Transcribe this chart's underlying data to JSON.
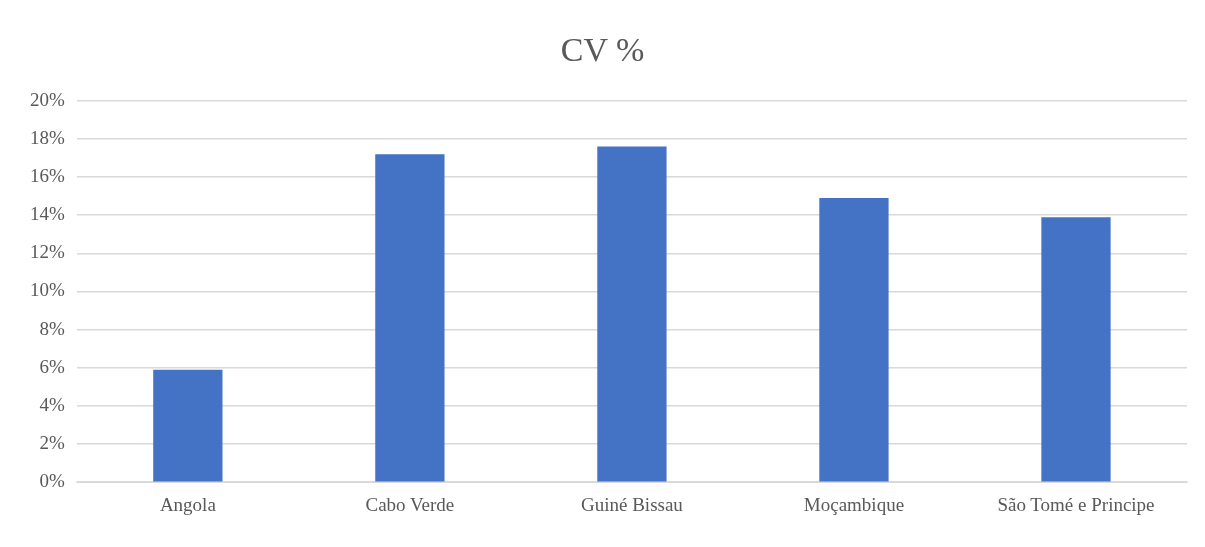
{
  "chart_data": {
    "type": "bar",
    "title": "CV %",
    "categories": [
      "Angola",
      "Cabo Verde",
      "Guiné Bissau",
      "Moçambique",
      "São Tomé e Principe"
    ],
    "values": [
      5.9,
      17.2,
      17.6,
      14.9,
      13.9
    ],
    "color": "#4472c4",
    "ylim": [
      0,
      20
    ],
    "yticks": [
      {
        "value": 0,
        "label": "0%"
      },
      {
        "value": 2,
        "label": "2%"
      },
      {
        "value": 4,
        "label": "4%"
      },
      {
        "value": 6,
        "label": "6%"
      },
      {
        "value": 8,
        "label": "8%"
      },
      {
        "value": 10,
        "label": "10%"
      },
      {
        "value": 12,
        "label": "12%"
      },
      {
        "value": 14,
        "label": "14%"
      },
      {
        "value": 16,
        "label": "16%"
      },
      {
        "value": 18,
        "label": "18%"
      },
      {
        "value": 20,
        "label": "20%"
      }
    ],
    "grid": "y"
  }
}
